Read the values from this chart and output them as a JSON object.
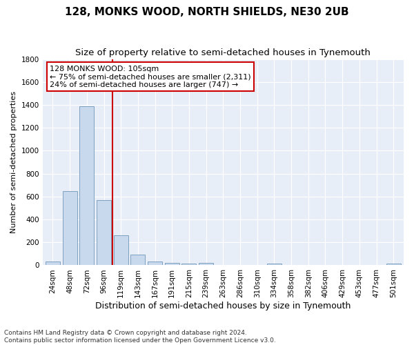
{
  "title": "128, MONKS WOOD, NORTH SHIELDS, NE30 2UB",
  "subtitle": "Size of property relative to semi-detached houses in Tynemouth",
  "xlabel": "Distribution of semi-detached houses by size in Tynemouth",
  "ylabel": "Number of semi-detached properties",
  "categories": [
    "24sqm",
    "48sqm",
    "72sqm",
    "96sqm",
    "119sqm",
    "143sqm",
    "167sqm",
    "191sqm",
    "215sqm",
    "239sqm",
    "263sqm",
    "286sqm",
    "310sqm",
    "334sqm",
    "358sqm",
    "382sqm",
    "406sqm",
    "429sqm",
    "453sqm",
    "477sqm",
    "501sqm"
  ],
  "values": [
    30,
    650,
    1390,
    570,
    260,
    95,
    35,
    20,
    15,
    20,
    5,
    0,
    0,
    15,
    0,
    0,
    0,
    0,
    0,
    0,
    15
  ],
  "bar_color": "#c8d9ed",
  "bar_edge_color": "#6e96b8",
  "vline_color": "#cc0000",
  "annotation_text": "128 MONKS WOOD: 105sqm\n← 75% of semi-detached houses are smaller (2,311)\n24% of semi-detached houses are larger (747) →",
  "annotation_box_color": "white",
  "annotation_box_edge": "#cc0000",
  "ylim": [
    0,
    1800
  ],
  "yticks": [
    0,
    200,
    400,
    600,
    800,
    1000,
    1200,
    1400,
    1600,
    1800
  ],
  "footer": "Contains HM Land Registry data © Crown copyright and database right 2024.\nContains public sector information licensed under the Open Government Licence v3.0.",
  "background_color": "#ffffff",
  "plot_bg_color": "#e8eef8",
  "grid_color": "#ffffff",
  "title_fontsize": 11,
  "subtitle_fontsize": 9.5,
  "xlabel_fontsize": 9,
  "ylabel_fontsize": 8,
  "tick_fontsize": 7.5,
  "annot_fontsize": 8,
  "footer_fontsize": 6.5
}
